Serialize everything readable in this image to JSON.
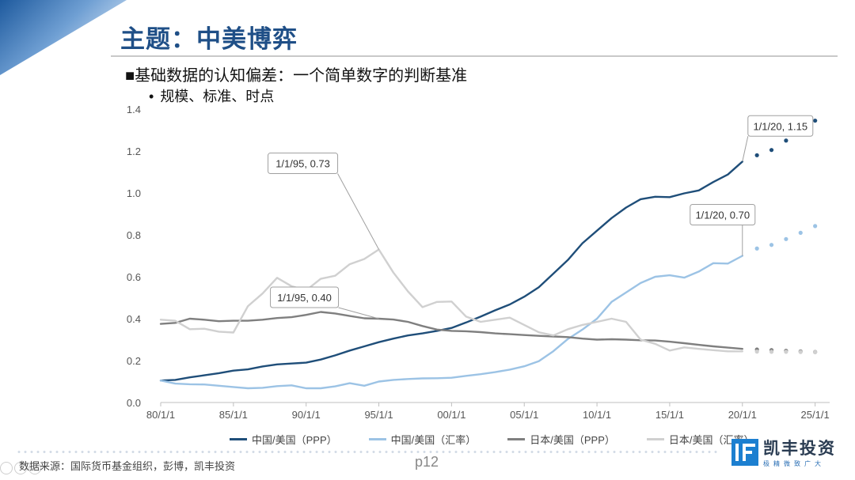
{
  "slide": {
    "title": "主题：中美博弈",
    "heading": "■基础数据的认知偏差：一个简单数字的判断基准",
    "bullet_marker": "•",
    "bullet": "规模、标准、时点",
    "source": "数据来源：国际货币基金组织，彭博，凯丰投资",
    "page": "p12",
    "logo_name": "凯丰投资",
    "logo_tagline": "极精微致广大",
    "colors": {
      "title": "#1f4f87",
      "brand": "#1c7fd0"
    }
  },
  "chart_data": {
    "type": "line",
    "x_tick_labels": [
      "80/1/1",
      "85/1/1",
      "90/1/1",
      "95/1/1",
      "00/1/1",
      "05/1/1",
      "10/1/1",
      "15/1/1",
      "20/1/1",
      "25/1/1"
    ],
    "xlim": [
      1980,
      2026
    ],
    "ylim": [
      0,
      1.4
    ],
    "y_ticks": [
      0,
      0.2,
      0.4,
      0.6,
      0.8,
      1.0,
      1.2,
      1.4
    ],
    "y_tick_labels": [
      "0.0",
      "0.2",
      "0.4",
      "0.6",
      "0.8",
      "1.0",
      "1.2",
      "1.4"
    ],
    "grid": false,
    "legend_position": "bottom",
    "series": [
      {
        "name": "中国/美国（PPP）",
        "color": "#1f4e79",
        "x": [
          1980,
          1981,
          1982,
          1983,
          1984,
          1985,
          1986,
          1987,
          1988,
          1989,
          1990,
          1991,
          1992,
          1993,
          1994,
          1995,
          1996,
          1997,
          1998,
          1999,
          2000,
          2001,
          2002,
          2003,
          2004,
          2005,
          2006,
          2007,
          2008,
          2009,
          2010,
          2011,
          2012,
          2013,
          2014,
          2015,
          2016,
          2017,
          2018,
          2019,
          2020
        ],
        "y": [
          0.105,
          0.108,
          0.12,
          0.13,
          0.14,
          0.152,
          0.158,
          0.172,
          0.182,
          0.186,
          0.19,
          0.205,
          0.225,
          0.248,
          0.268,
          0.288,
          0.305,
          0.32,
          0.33,
          0.342,
          0.356,
          0.382,
          0.41,
          0.44,
          0.468,
          0.505,
          0.55,
          0.615,
          0.68,
          0.76,
          0.82,
          0.88,
          0.93,
          0.97,
          0.982,
          0.98,
          0.998,
          1.012,
          1.052,
          1.088,
          1.15
        ],
        "forecast": {
          "x": [
            2021,
            2022,
            2023,
            2024,
            2025
          ],
          "y": [
            1.18,
            1.205,
            1.25,
            1.298,
            1.345
          ]
        }
      },
      {
        "name": "中国/美国（汇率）",
        "color": "#9cc3e5",
        "x": [
          1980,
          1981,
          1982,
          1983,
          1984,
          1985,
          1986,
          1987,
          1988,
          1989,
          1990,
          1991,
          1992,
          1993,
          1994,
          1995,
          1996,
          1997,
          1998,
          1999,
          2000,
          2001,
          2002,
          2003,
          2004,
          2005,
          2006,
          2007,
          2008,
          2009,
          2010,
          2011,
          2012,
          2013,
          2014,
          2015,
          2016,
          2017,
          2018,
          2019,
          2020
        ],
        "y": [
          0.105,
          0.09,
          0.087,
          0.086,
          0.08,
          0.074,
          0.068,
          0.07,
          0.078,
          0.082,
          0.068,
          0.068,
          0.077,
          0.092,
          0.08,
          0.1,
          0.108,
          0.112,
          0.115,
          0.116,
          0.118,
          0.127,
          0.135,
          0.145,
          0.157,
          0.173,
          0.197,
          0.245,
          0.303,
          0.348,
          0.4,
          0.48,
          0.525,
          0.57,
          0.6,
          0.607,
          0.596,
          0.625,
          0.665,
          0.663,
          0.7
        ],
        "forecast": {
          "x": [
            2021,
            2022,
            2023,
            2024,
            2025
          ],
          "y": [
            0.735,
            0.752,
            0.78,
            0.81,
            0.842
          ]
        }
      },
      {
        "name": "日本/美国（PPP）",
        "color": "#7f7f7f",
        "x": [
          1980,
          1981,
          1982,
          1983,
          1984,
          1985,
          1986,
          1987,
          1988,
          1989,
          1990,
          1991,
          1992,
          1993,
          1994,
          1995,
          1996,
          1997,
          1998,
          1999,
          2000,
          2001,
          2002,
          2003,
          2004,
          2005,
          2006,
          2007,
          2008,
          2009,
          2010,
          2011,
          2012,
          2013,
          2014,
          2015,
          2016,
          2017,
          2018,
          2019,
          2020
        ],
        "y": [
          0.375,
          0.38,
          0.4,
          0.395,
          0.388,
          0.39,
          0.39,
          0.395,
          0.403,
          0.407,
          0.418,
          0.432,
          0.425,
          0.413,
          0.402,
          0.4,
          0.396,
          0.385,
          0.365,
          0.348,
          0.342,
          0.34,
          0.336,
          0.33,
          0.326,
          0.322,
          0.318,
          0.315,
          0.312,
          0.305,
          0.3,
          0.302,
          0.3,
          0.297,
          0.296,
          0.29,
          0.283,
          0.275,
          0.268,
          0.262,
          0.256
        ],
        "forecast": {
          "x": [
            2021,
            2022,
            2023,
            2024,
            2025
          ],
          "y": [
            0.253,
            0.25,
            0.247,
            0.244,
            0.241
          ]
        }
      },
      {
        "name": "日本/美国（汇率）",
        "color": "#d0d0d0",
        "x": [
          1980,
          1981,
          1982,
          1983,
          1984,
          1985,
          1986,
          1987,
          1988,
          1989,
          1990,
          1991,
          1992,
          1993,
          1994,
          1995,
          1996,
          1997,
          1998,
          1999,
          2000,
          2001,
          2002,
          2003,
          2004,
          2005,
          2006,
          2007,
          2008,
          2009,
          2010,
          2011,
          2012,
          2013,
          2014,
          2015,
          2016,
          2017,
          2018,
          2019,
          2020
        ],
        "y": [
          0.395,
          0.39,
          0.35,
          0.352,
          0.338,
          0.334,
          0.46,
          0.52,
          0.595,
          0.555,
          0.535,
          0.59,
          0.605,
          0.66,
          0.685,
          0.73,
          0.62,
          0.53,
          0.455,
          0.48,
          0.482,
          0.41,
          0.385,
          0.395,
          0.405,
          0.37,
          0.335,
          0.32,
          0.35,
          0.37,
          0.385,
          0.4,
          0.385,
          0.3,
          0.28,
          0.248,
          0.263,
          0.256,
          0.25,
          0.244,
          0.244
        ],
        "forecast": {
          "x": [
            2021,
            2022,
            2023,
            2024,
            2025
          ],
          "y": [
            0.243,
            0.242,
            0.242,
            0.241,
            0.24
          ]
        }
      }
    ],
    "annotations": [
      {
        "text": "1/1/20, 1.15",
        "x": 2020,
        "y": 1.15
      },
      {
        "text": "1/1/20, 0.70",
        "x": 2020,
        "y": 0.7
      },
      {
        "text": "1/1/95, 0.73",
        "x": 1995,
        "y": 0.73
      },
      {
        "text": "1/1/95, 0.40",
        "x": 1995,
        "y": 0.4
      }
    ]
  }
}
